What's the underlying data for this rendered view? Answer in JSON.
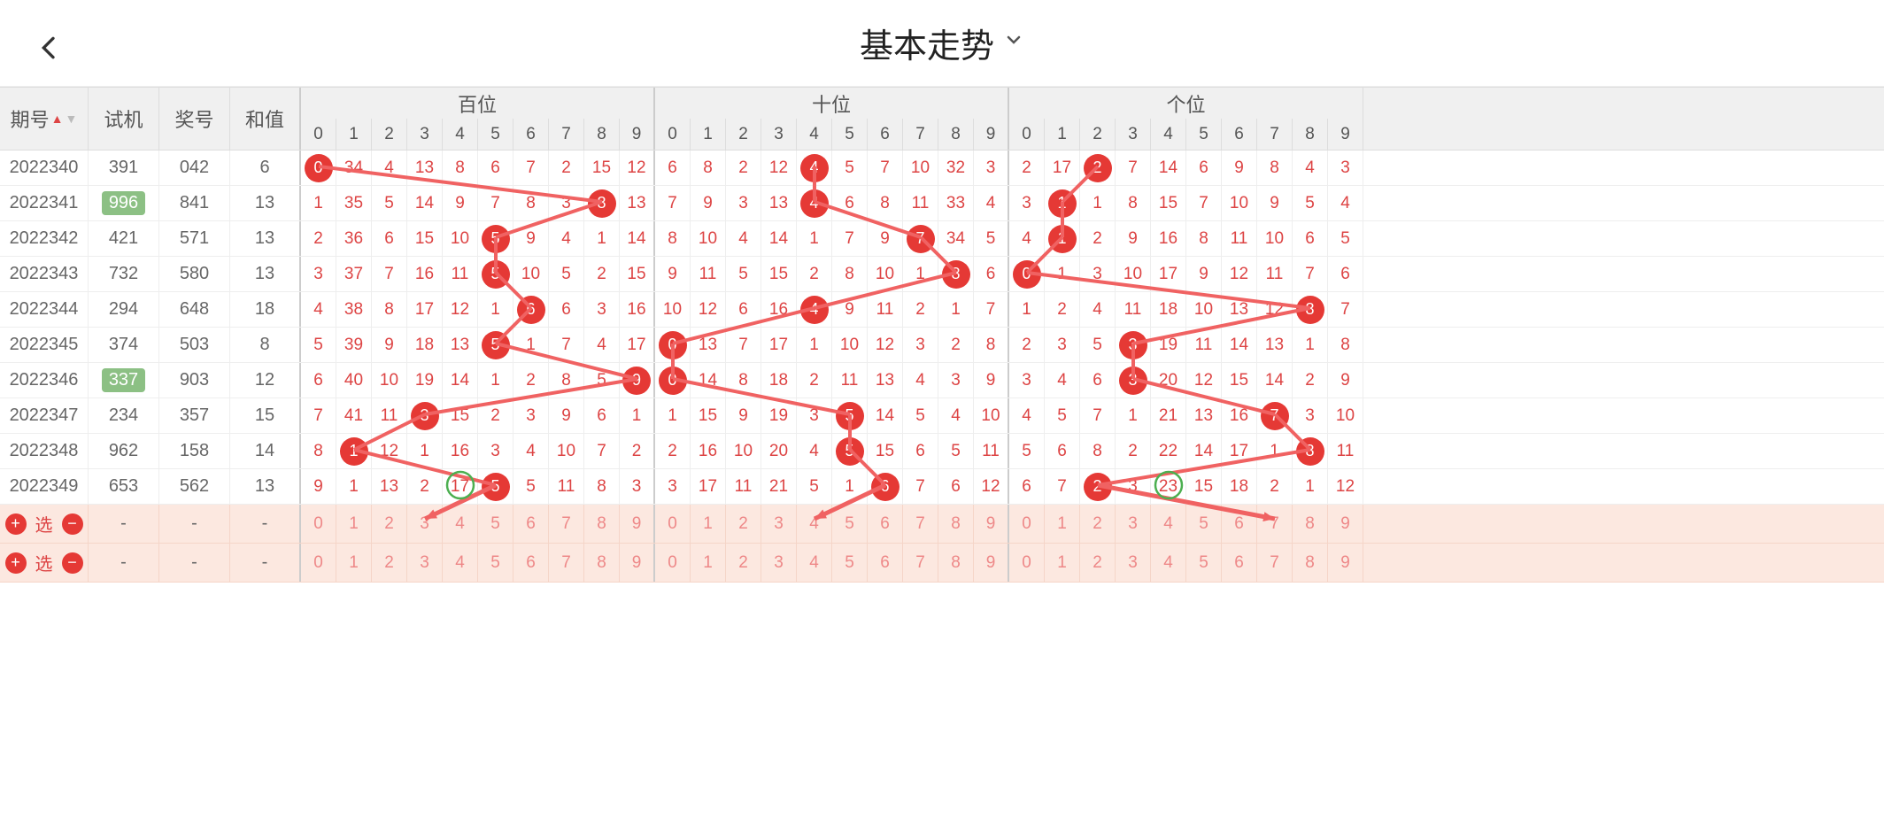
{
  "header": {
    "title": "基本走势",
    "back_icon": "‹",
    "chevron": "⌄"
  },
  "columns": {
    "period": "期号",
    "shiji": "试机",
    "award": "奖号",
    "hezhi": "和值",
    "sections": [
      "百位",
      "十位",
      "个位"
    ],
    "digits": [
      "0",
      "1",
      "2",
      "3",
      "4",
      "5",
      "6",
      "7",
      "8",
      "9"
    ]
  },
  "colors": {
    "ball": "#e53935",
    "line": "#f06262",
    "num": "#d44",
    "shiji_hl_bg": "#8cc084",
    "sel_bg": "#fce8e0",
    "green_circle": "#4caf50",
    "header_bg": "#f0f0f0"
  },
  "rows": [
    {
      "period": "2022340",
      "shiji": "391",
      "shiji_hl": false,
      "award": "042",
      "hezhi": "6",
      "bai": {
        "hit": 0,
        "vals": [
          "0",
          "34",
          "4",
          "13",
          "8",
          "6",
          "7",
          "2",
          "15",
          "12"
        ]
      },
      "shi": {
        "hit": 4,
        "vals": [
          "6",
          "8",
          "2",
          "12",
          "4",
          "5",
          "7",
          "10",
          "32",
          "3"
        ]
      },
      "ge": {
        "hit": 2,
        "vals": [
          "2",
          "17",
          "2",
          "7",
          "14",
          "6",
          "9",
          "8",
          "4",
          "3"
        ]
      }
    },
    {
      "period": "2022341",
      "shiji": "996",
      "shiji_hl": true,
      "award": "841",
      "hezhi": "13",
      "bai": {
        "hit": 8,
        "vals": [
          "1",
          "35",
          "5",
          "14",
          "9",
          "7",
          "8",
          "3",
          "8",
          "13"
        ]
      },
      "shi": {
        "hit": 4,
        "vals": [
          "7",
          "9",
          "3",
          "13",
          "4",
          "6",
          "8",
          "11",
          "33",
          "4"
        ]
      },
      "ge": {
        "hit": 1,
        "vals": [
          "3",
          "1",
          "1",
          "8",
          "15",
          "7",
          "10",
          "9",
          "5",
          "4"
        ]
      }
    },
    {
      "period": "2022342",
      "shiji": "421",
      "shiji_hl": false,
      "award": "571",
      "hezhi": "13",
      "bai": {
        "hit": 5,
        "vals": [
          "2",
          "36",
          "6",
          "15",
          "10",
          "5",
          "9",
          "4",
          "1",
          "14"
        ]
      },
      "shi": {
        "hit": 7,
        "vals": [
          "8",
          "10",
          "4",
          "14",
          "1",
          "7",
          "9",
          "7",
          "34",
          "5"
        ]
      },
      "ge": {
        "hit": 1,
        "vals": [
          "4",
          "1",
          "2",
          "9",
          "16",
          "8",
          "11",
          "10",
          "6",
          "5"
        ]
      }
    },
    {
      "period": "2022343",
      "shiji": "732",
      "shiji_hl": false,
      "award": "580",
      "hezhi": "13",
      "bai": {
        "hit": 5,
        "vals": [
          "3",
          "37",
          "7",
          "16",
          "11",
          "5",
          "10",
          "5",
          "2",
          "15"
        ]
      },
      "shi": {
        "hit": 8,
        "vals": [
          "9",
          "11",
          "5",
          "15",
          "2",
          "8",
          "10",
          "1",
          "8",
          "6"
        ]
      },
      "ge": {
        "hit": 0,
        "vals": [
          "0",
          "1",
          "3",
          "10",
          "17",
          "9",
          "12",
          "11",
          "7",
          "6"
        ]
      }
    },
    {
      "period": "2022344",
      "shiji": "294",
      "shiji_hl": false,
      "award": "648",
      "hezhi": "18",
      "bai": {
        "hit": 6,
        "vals": [
          "4",
          "38",
          "8",
          "17",
          "12",
          "1",
          "6",
          "6",
          "3",
          "16"
        ]
      },
      "shi": {
        "hit": 4,
        "vals": [
          "10",
          "12",
          "6",
          "16",
          "4",
          "9",
          "11",
          "2",
          "1",
          "7"
        ]
      },
      "ge": {
        "hit": 8,
        "vals": [
          "1",
          "2",
          "4",
          "11",
          "18",
          "10",
          "13",
          "12",
          "8",
          "7"
        ]
      }
    },
    {
      "period": "2022345",
      "shiji": "374",
      "shiji_hl": false,
      "award": "503",
      "hezhi": "8",
      "bai": {
        "hit": 5,
        "vals": [
          "5",
          "39",
          "9",
          "18",
          "13",
          "5",
          "1",
          "7",
          "4",
          "17"
        ]
      },
      "shi": {
        "hit": 0,
        "vals": [
          "0",
          "13",
          "7",
          "17",
          "1",
          "10",
          "12",
          "3",
          "2",
          "8"
        ]
      },
      "ge": {
        "hit": 3,
        "vals": [
          "2",
          "3",
          "5",
          "3",
          "19",
          "11",
          "14",
          "13",
          "1",
          "8"
        ]
      }
    },
    {
      "period": "2022346",
      "shiji": "337",
      "shiji_hl": true,
      "award": "903",
      "hezhi": "12",
      "bai": {
        "hit": 9,
        "vals": [
          "6",
          "40",
          "10",
          "19",
          "14",
          "1",
          "2",
          "8",
          "5",
          "9"
        ]
      },
      "shi": {
        "hit": 0,
        "vals": [
          "0",
          "14",
          "8",
          "18",
          "2",
          "11",
          "13",
          "4",
          "3",
          "9"
        ]
      },
      "ge": {
        "hit": 3,
        "vals": [
          "3",
          "4",
          "6",
          "3",
          "20",
          "12",
          "15",
          "14",
          "2",
          "9"
        ]
      }
    },
    {
      "period": "2022347",
      "shiji": "234",
      "shiji_hl": false,
      "award": "357",
      "hezhi": "15",
      "bai": {
        "hit": 3,
        "vals": [
          "7",
          "41",
          "11",
          "3",
          "15",
          "2",
          "3",
          "9",
          "6",
          "1"
        ]
      },
      "shi": {
        "hit": 5,
        "vals": [
          "1",
          "15",
          "9",
          "19",
          "3",
          "5",
          "14",
          "5",
          "4",
          "10"
        ]
      },
      "ge": {
        "hit": 7,
        "vals": [
          "4",
          "5",
          "7",
          "1",
          "21",
          "13",
          "16",
          "7",
          "3",
          "10"
        ]
      }
    },
    {
      "period": "2022348",
      "shiji": "962",
      "shiji_hl": false,
      "award": "158",
      "hezhi": "14",
      "bai": {
        "hit": 1,
        "vals": [
          "8",
          "1",
          "12",
          "1",
          "16",
          "3",
          "4",
          "10",
          "7",
          "2"
        ]
      },
      "shi": {
        "hit": 5,
        "vals": [
          "2",
          "16",
          "10",
          "20",
          "4",
          "5",
          "15",
          "6",
          "5",
          "11"
        ]
      },
      "ge": {
        "hit": 8,
        "vals": [
          "5",
          "6",
          "8",
          "2",
          "22",
          "14",
          "17",
          "1",
          "8",
          "11"
        ]
      }
    },
    {
      "period": "2022349",
      "shiji": "653",
      "shiji_hl": false,
      "award": "562",
      "hezhi": "13",
      "bai": {
        "hit": 5,
        "vals": [
          "9",
          "1",
          "13",
          "2",
          "17",
          "5",
          "5",
          "11",
          "8",
          "3"
        ]
      },
      "shi": {
        "hit": 6,
        "vals": [
          "3",
          "17",
          "11",
          "21",
          "5",
          "1",
          "6",
          "7",
          "6",
          "12"
        ]
      },
      "ge": {
        "hit": 2,
        "vals": [
          "6",
          "7",
          "2",
          "3",
          "23",
          "15",
          "18",
          "2",
          "1",
          "12"
        ]
      }
    }
  ],
  "green_circles": [
    {
      "row": 9,
      "section": "bai",
      "col": 4
    },
    {
      "row": 9,
      "section": "ge",
      "col": 4
    }
  ],
  "select_rows": 2,
  "select_label": "选",
  "select_placeholder": "-",
  "arrows": [
    {
      "from_section": "bai",
      "from_col": 5,
      "to_section": "bai",
      "to_col": 3
    },
    {
      "from_section": "shi",
      "from_col": 6,
      "to_section": "shi",
      "to_col": 4
    },
    {
      "from_section": "ge",
      "from_col": 2,
      "to_section": "ge",
      "to_col": 7
    }
  ]
}
